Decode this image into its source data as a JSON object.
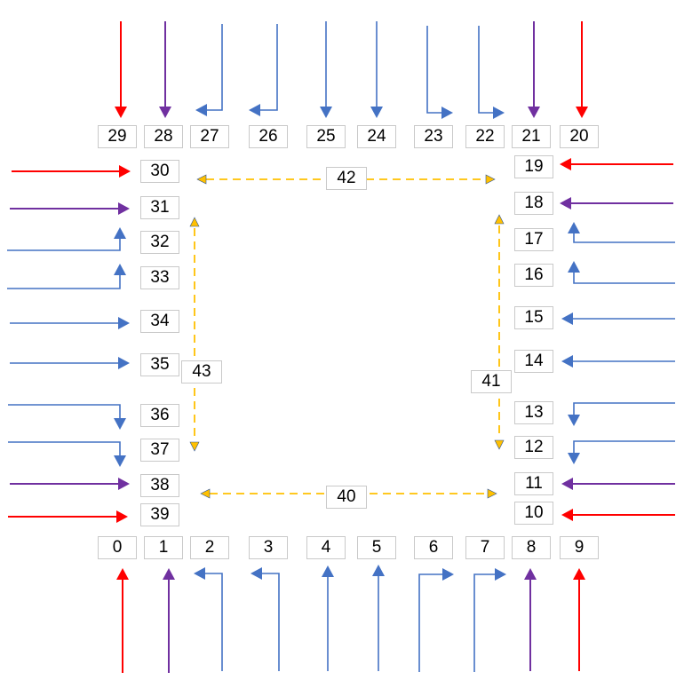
{
  "colors": {
    "red": "#ff0000",
    "purple": "#7030a0",
    "blue": "#4472c4",
    "orange": "#ffc000",
    "box_border": "#c9c9c9"
  },
  "nodes": {
    "n0": "0",
    "n1": "1",
    "n2": "2",
    "n3": "3",
    "n4": "4",
    "n5": "5",
    "n6": "6",
    "n7": "7",
    "n8": "8",
    "n9": "9",
    "n10": "10",
    "n11": "11",
    "n12": "12",
    "n13": "13",
    "n14": "14",
    "n15": "15",
    "n16": "16",
    "n17": "17",
    "n18": "18",
    "n19": "19",
    "n20": "20",
    "n21": "21",
    "n22": "22",
    "n23": "23",
    "n24": "24",
    "n25": "25",
    "n26": "26",
    "n27": "27",
    "n28": "28",
    "n29": "29",
    "n30": "30",
    "n31": "31",
    "n32": "32",
    "n33": "33",
    "n34": "34",
    "n35": "35",
    "n36": "36",
    "n37": "37",
    "n38": "38",
    "n39": "39",
    "n40": "40",
    "n41": "41",
    "n42": "42",
    "n43": "43"
  },
  "edges": [
    {
      "from": "external",
      "to": "0",
      "color": "red"
    },
    {
      "from": "external",
      "to": "1",
      "color": "purple"
    },
    {
      "from": "external",
      "to": "2",
      "color": "blue"
    },
    {
      "from": "external",
      "to": "3",
      "color": "blue"
    },
    {
      "from": "external",
      "to": "4",
      "color": "blue"
    },
    {
      "from": "external",
      "to": "5",
      "color": "blue"
    },
    {
      "from": "external",
      "to": "6",
      "color": "blue"
    },
    {
      "from": "external",
      "to": "7",
      "color": "blue"
    },
    {
      "from": "external",
      "to": "8",
      "color": "purple"
    },
    {
      "from": "external",
      "to": "9",
      "color": "red"
    },
    {
      "from": "external",
      "to": "10",
      "color": "red"
    },
    {
      "from": "external",
      "to": "11",
      "color": "purple"
    },
    {
      "from": "external",
      "to": "12",
      "color": "blue"
    },
    {
      "from": "external",
      "to": "13",
      "color": "blue"
    },
    {
      "from": "external",
      "to": "14",
      "color": "blue"
    },
    {
      "from": "external",
      "to": "15",
      "color": "blue"
    },
    {
      "from": "external",
      "to": "16",
      "color": "blue"
    },
    {
      "from": "external",
      "to": "17",
      "color": "blue"
    },
    {
      "from": "external",
      "to": "18",
      "color": "purple"
    },
    {
      "from": "external",
      "to": "19",
      "color": "red"
    },
    {
      "from": "external",
      "to": "20",
      "color": "red"
    },
    {
      "from": "external",
      "to": "21",
      "color": "purple"
    },
    {
      "from": "external",
      "to": "22",
      "color": "blue"
    },
    {
      "from": "external",
      "to": "23",
      "color": "blue"
    },
    {
      "from": "external",
      "to": "24",
      "color": "blue"
    },
    {
      "from": "external",
      "to": "25",
      "color": "blue"
    },
    {
      "from": "external",
      "to": "26",
      "color": "blue"
    },
    {
      "from": "external",
      "to": "27",
      "color": "blue"
    },
    {
      "from": "external",
      "to": "28",
      "color": "purple"
    },
    {
      "from": "external",
      "to": "29",
      "color": "red"
    },
    {
      "from": "external",
      "to": "30",
      "color": "red"
    },
    {
      "from": "external",
      "to": "31",
      "color": "purple"
    },
    {
      "from": "external",
      "to": "32",
      "color": "blue"
    },
    {
      "from": "external",
      "to": "33",
      "color": "blue"
    },
    {
      "from": "external",
      "to": "34",
      "color": "blue"
    },
    {
      "from": "external",
      "to": "35",
      "color": "blue"
    },
    {
      "from": "external",
      "to": "36",
      "color": "blue"
    },
    {
      "from": "external",
      "to": "37",
      "color": "blue"
    },
    {
      "from": "external",
      "to": "38",
      "color": "purple"
    },
    {
      "from": "external",
      "to": "39",
      "color": "red"
    },
    {
      "from": "40",
      "to": "both-directions",
      "color": "orange",
      "style": "dashed"
    },
    {
      "from": "41",
      "to": "both-directions",
      "color": "orange",
      "style": "dashed"
    },
    {
      "from": "42",
      "to": "both-directions",
      "color": "orange",
      "style": "dashed"
    },
    {
      "from": "43",
      "to": "both-directions",
      "color": "orange",
      "style": "dashed"
    }
  ]
}
